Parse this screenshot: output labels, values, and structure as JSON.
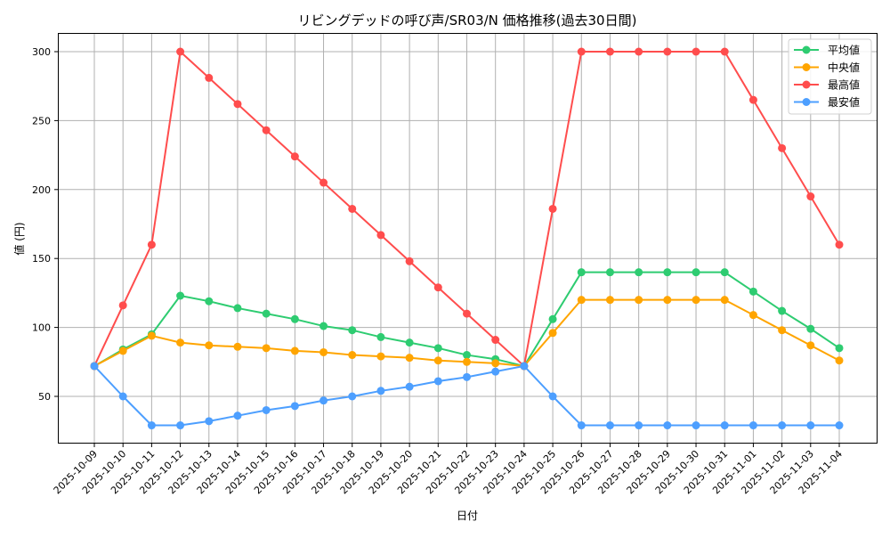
{
  "chart_data": {
    "type": "line",
    "title": "リビングデッドの呼び声/SR03/N 価格推移(過去30日間)",
    "xlabel": "日付",
    "ylabel": "値 (円)",
    "ylim": [
      15.8,
      313.6
    ],
    "yticks": [
      50,
      100,
      150,
      200,
      250,
      300
    ],
    "grid": true,
    "legend_position": "upper right",
    "categories": [
      "2025-10-09",
      "2025-10-10",
      "2025-10-11",
      "2025-10-12",
      "2025-10-13",
      "2025-10-14",
      "2025-10-15",
      "2025-10-16",
      "2025-10-17",
      "2025-10-18",
      "2025-10-19",
      "2025-10-20",
      "2025-10-21",
      "2025-10-22",
      "2025-10-23",
      "2025-10-24",
      "2025-10-25",
      "2025-10-26",
      "2025-10-27",
      "2025-10-28",
      "2025-10-29",
      "2025-10-30",
      "2025-10-31",
      "2025-11-01",
      "2025-11-02",
      "2025-11-03",
      "2025-11-04"
    ],
    "series": [
      {
        "name": "平均値",
        "color": "#2ecc71",
        "values": [
          72,
          84,
          95,
          123,
          119,
          114,
          110,
          106,
          101,
          98,
          93,
          89,
          85,
          80,
          77,
          72,
          106,
          140,
          140,
          140,
          140,
          140,
          140,
          126,
          112,
          99,
          85
        ]
      },
      {
        "name": "中央値",
        "color": "#ffa500",
        "values": [
          72,
          83,
          94,
          89,
          87,
          86,
          85,
          83,
          82,
          80,
          79,
          78,
          76,
          75,
          74,
          72,
          96,
          120,
          120,
          120,
          120,
          120,
          120,
          109,
          98,
          87,
          76
        ]
      },
      {
        "name": "最高値",
        "color": "#ff4d4d",
        "values": [
          72,
          116,
          160,
          300,
          281,
          262,
          243,
          224,
          205,
          186,
          167,
          148,
          129,
          110,
          91,
          72,
          186,
          300,
          300,
          300,
          300,
          300,
          300,
          265,
          230,
          195,
          160
        ]
      },
      {
        "name": "最安値",
        "color": "#4d9fff",
        "values": [
          72,
          50,
          29,
          29,
          32,
          36,
          40,
          43,
          47,
          50,
          54,
          57,
          61,
          64,
          68,
          72,
          50,
          29,
          29,
          29,
          29,
          29,
          29,
          29,
          29,
          29,
          29
        ]
      }
    ]
  }
}
